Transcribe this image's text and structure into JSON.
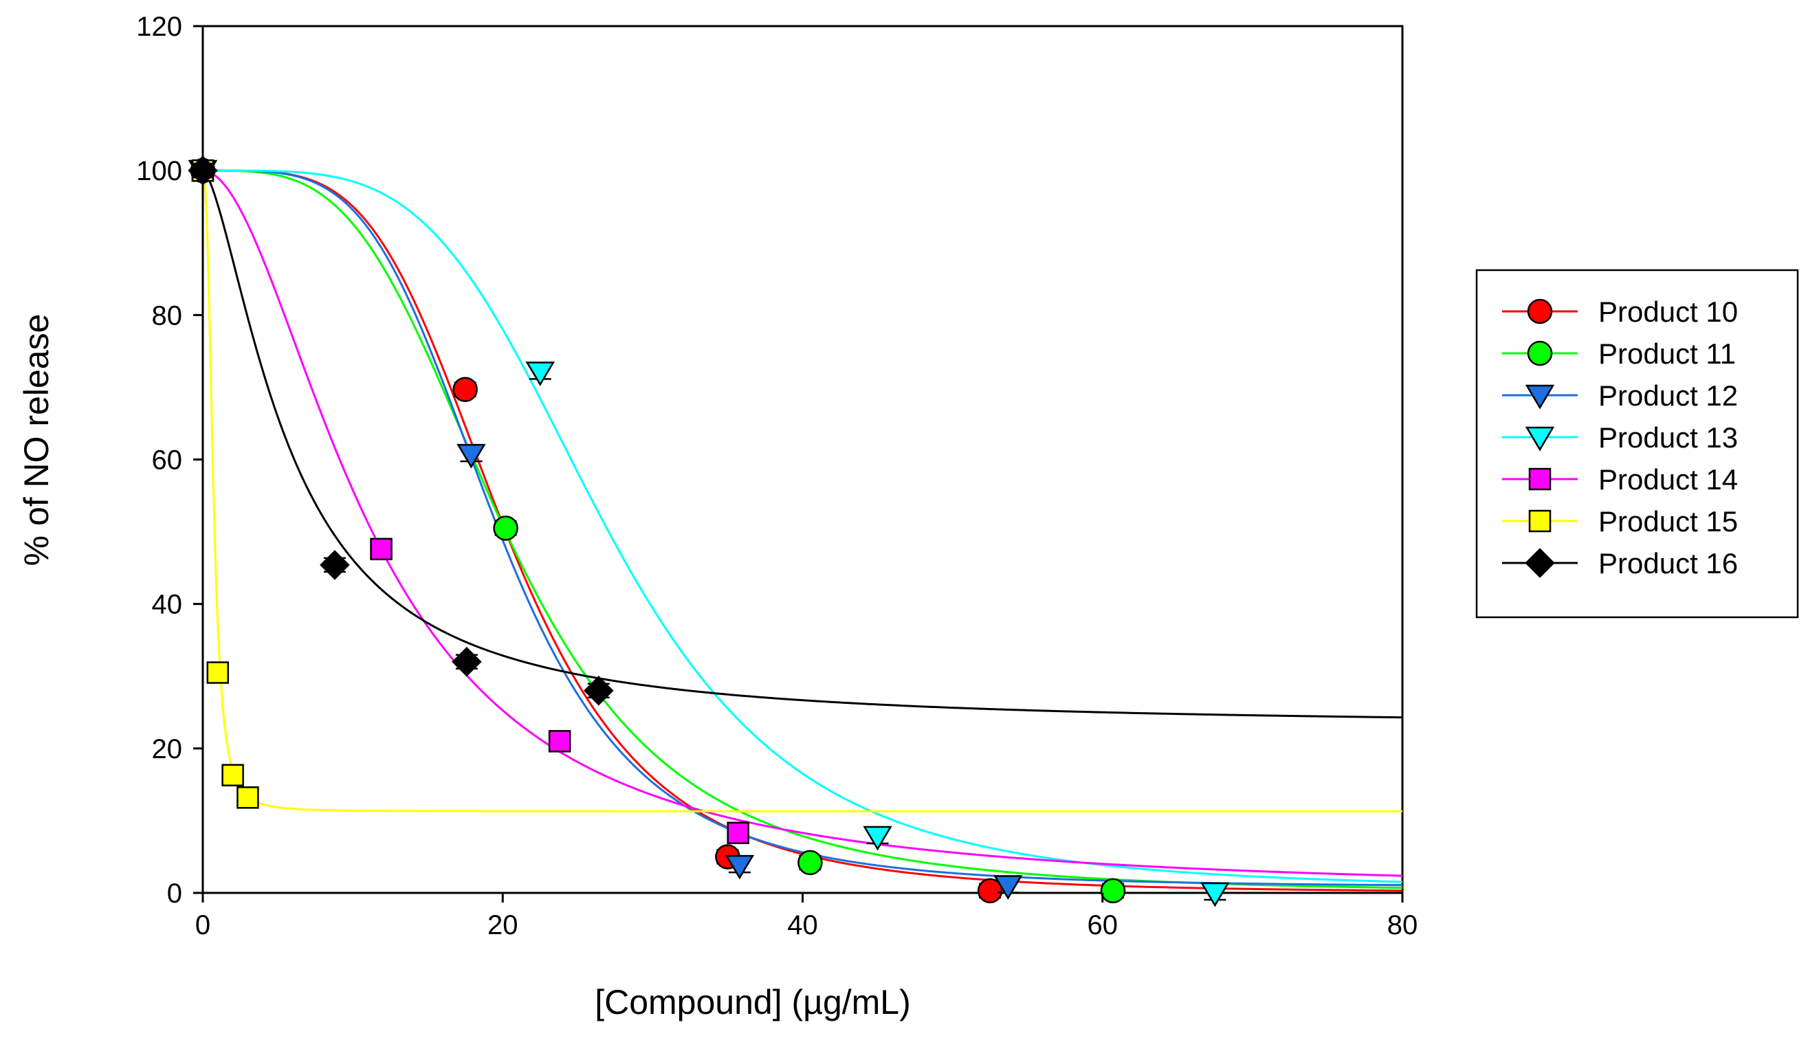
{
  "chart_data": {
    "type": "scatter",
    "xlabel": "[Compound] (µg/mL)",
    "ylabel": "% of NO release",
    "xlim": [
      0,
      80
    ],
    "ylim": [
      0,
      120
    ],
    "xticks": [
      "0",
      "20",
      "40",
      "60",
      "80"
    ],
    "yticks": [
      "0",
      "20",
      "40",
      "60",
      "80",
      "100",
      "120"
    ],
    "grid": false,
    "legend_position": "right",
    "series": [
      {
        "name": "Product 10",
        "color": "#ff0000",
        "marker": "circle",
        "points": [
          [
            0,
            100
          ],
          [
            17.5,
            69.7
          ],
          [
            35,
            5
          ],
          [
            52.5,
            0.3
          ]
        ],
        "fit": {
          "model": "hill",
          "top": 100,
          "bottom": 0,
          "ic50": 20.2,
          "n": 4.2
        }
      },
      {
        "name": "Product 11",
        "color": "#00ff00",
        "marker": "circle",
        "points": [
          [
            0,
            100
          ],
          [
            20.2,
            50.5
          ],
          [
            40.5,
            4.2
          ],
          [
            60.7,
            0.3
          ]
        ],
        "fit": {
          "model": "hill",
          "top": 100,
          "bottom": 0,
          "ic50": 20.2,
          "n": 3.6
        }
      },
      {
        "name": "Product 12",
        "color": "#1e6fe0",
        "marker": "triangle-down",
        "points": [
          [
            0,
            100
          ],
          [
            17.9,
            60.7
          ],
          [
            35.8,
            3.8
          ],
          [
            53.7,
            1
          ]
        ],
        "fit": {
          "model": "hill",
          "top": 100,
          "bottom": 0.8,
          "ic50": 19.7,
          "n": 4.2
        }
      },
      {
        "name": "Product 13",
        "color": "#00ffff",
        "marker": "triangle-down",
        "points": [
          [
            0,
            100
          ],
          [
            22.5,
            72.1
          ],
          [
            45,
            7.8
          ],
          [
            67.5,
            0
          ]
        ],
        "fit": {
          "model": "hill",
          "top": 100,
          "bottom": 0.5,
          "ic50": 27,
          "n": 4.2
        }
      },
      {
        "name": "Product 14",
        "color": "#ff00ff",
        "marker": "square",
        "points": [
          [
            0,
            100
          ],
          [
            11.9,
            47.6
          ],
          [
            23.8,
            21
          ],
          [
            35.7,
            8.3
          ]
        ],
        "fit": {
          "model": "hill",
          "top": 100,
          "bottom": 0,
          "ic50": 11.3,
          "n": 1.9
        }
      },
      {
        "name": "Product 15",
        "color": "#ffff00",
        "marker": "square",
        "points": [
          [
            0,
            100
          ],
          [
            1,
            30.5
          ],
          [
            2,
            16.3
          ],
          [
            3,
            13.2
          ]
        ],
        "fit": {
          "model": "hill",
          "top": 100,
          "bottom": 11.3,
          "ic50": 0.71,
          "n": 2.6
        }
      },
      {
        "name": "Product 16",
        "color": "#000000",
        "marker": "diamond",
        "points": [
          [
            0,
            100
          ],
          [
            8.8,
            45.4
          ],
          [
            17.6,
            32
          ],
          [
            26.4,
            28
          ]
        ],
        "fit": {
          "model": "hill",
          "top": 100,
          "bottom": 23,
          "ic50": 5.8,
          "n": 1.55
        }
      }
    ]
  }
}
